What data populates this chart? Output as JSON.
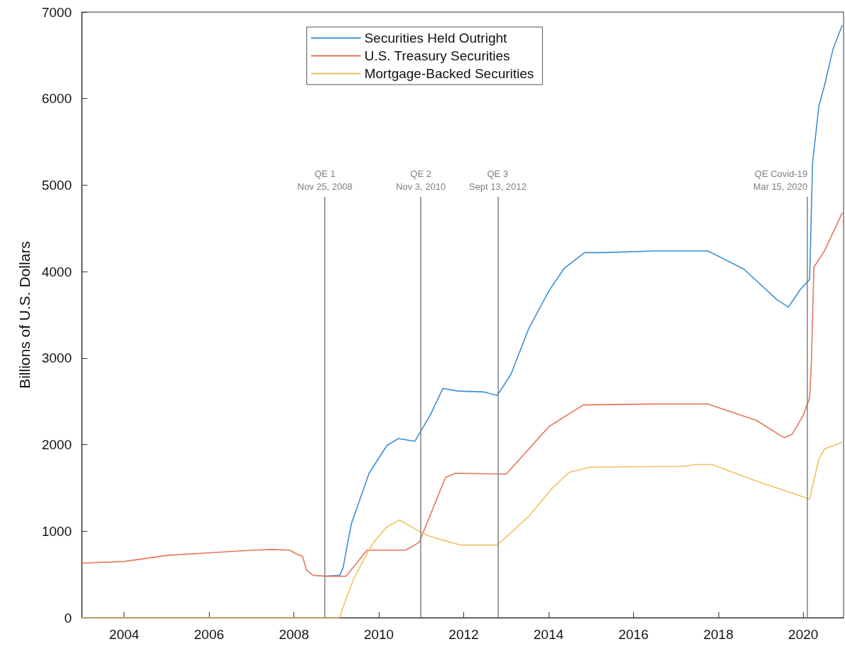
{
  "chart_data": {
    "type": "line",
    "ylabel": "Billions of U.S. Dollars",
    "xlim": [
      2003,
      2020.95
    ],
    "xticks": [
      2004,
      2006,
      2008,
      2010,
      2012,
      2014,
      2016,
      2018,
      2020
    ],
    "ylim": [
      0,
      7000
    ],
    "yticks": [
      0,
      1000,
      2000,
      3000,
      4000,
      5000,
      6000,
      7000
    ],
    "grid": false,
    "legend": "top",
    "marker": "none",
    "series": [
      {
        "name": "Securities Held Outright",
        "color": "#3d8fd6",
        "x": [
          2008.75,
          2009.08,
          2009.16,
          2009.23,
          2009.35,
          2009.77,
          2010.19,
          2010.46,
          2010.85,
          2011.21,
          2011.51,
          2011.86,
          2012.46,
          2012.79,
          2013.11,
          2013.53,
          2014.01,
          2014.37,
          2014.85,
          2015.32,
          2016.5,
          2017.75,
          2018.6,
          2019.37,
          2019.65,
          2019.94,
          2020.15,
          2020.22,
          2020.37,
          2020.5,
          2020.7,
          2020.92
        ],
        "values": [
          480,
          490,
          580,
          770,
          1080,
          1670,
          1990,
          2070,
          2040,
          2340,
          2650,
          2620,
          2610,
          2570,
          2810,
          3340,
          3780,
          4040,
          4220,
          4220,
          4240,
          4240,
          4030,
          3680,
          3590,
          3800,
          3910,
          5260,
          5920,
          6150,
          6570,
          6850
        ]
      },
      {
        "name": "U.S. Treasury Securities",
        "color": "#e5775a",
        "x": [
          2003,
          2004,
          2005,
          2006,
          2007,
          2007.5,
          2007.9,
          2008.05,
          2008.2,
          2008.3,
          2008.45,
          2008.75,
          2009.23,
          2009.72,
          2010.63,
          2010.95,
          2011.57,
          2011.8,
          2013.0,
          2014.01,
          2014.82,
          2016.5,
          2017.75,
          2018.9,
          2019.55,
          2019.74,
          2019.99,
          2020.15,
          2020.19,
          2020.25,
          2020.5,
          2020.92
        ],
        "values": [
          630,
          650,
          720,
          750,
          780,
          790,
          780,
          740,
          710,
          550,
          490,
          480,
          480,
          780,
          780,
          870,
          1620,
          1670,
          1660,
          2210,
          2460,
          2470,
          2470,
          2280,
          2080,
          2120,
          2330,
          2540,
          2940,
          4050,
          4240,
          4680
        ]
      },
      {
        "name": "Mortgage-Backed Securities",
        "color": "#f4c060",
        "x": [
          2003,
          2009.07,
          2009.23,
          2009.4,
          2009.75,
          2009.89,
          2010.19,
          2010.49,
          2010.91,
          2011.2,
          2011.63,
          2011.92,
          2012.79,
          2013.53,
          2014.07,
          2014.48,
          2014.97,
          2017.2,
          2017.46,
          2017.85,
          2018.9,
          2019.74,
          2020.15,
          2020.37,
          2020.5,
          2020.92
        ],
        "values": [
          0,
          0,
          220,
          440,
          770,
          880,
          1050,
          1130,
          1010,
          940,
          880,
          840,
          840,
          1170,
          1490,
          1680,
          1740,
          1750,
          1770,
          1770,
          1580,
          1440,
          1370,
          1840,
          1950,
          2030
        ]
      }
    ],
    "ref_lines": [
      {
        "axis": "x",
        "value": 2008.73,
        "label": "QE 1\nNov 25, 2008",
        "color": "#808080"
      },
      {
        "axis": "x",
        "value": 2010.99,
        "label": "QE 2\nNov 3, 2010",
        "color": "#808080"
      },
      {
        "axis": "x",
        "value": 2012.8,
        "label": "QE 3\nSept 13, 2012",
        "color": "#808080"
      },
      {
        "axis": "x",
        "value": 2020.1,
        "label": "QE Covid-19\nMar 15, 2020",
        "color": "#808080"
      }
    ]
  }
}
